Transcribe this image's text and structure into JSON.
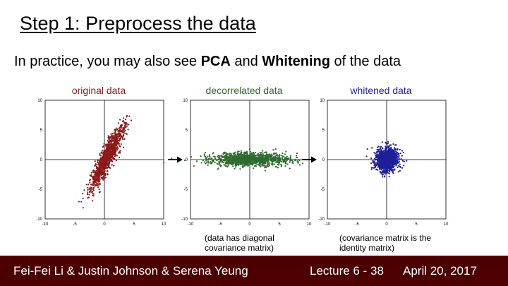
{
  "slide": {
    "title": "Step 1: Preprocess the data",
    "subtitle": {
      "pre": "In practice, you may also see ",
      "pca": "PCA",
      "mid": " and ",
      "whitening": "Whitening",
      "post": " of the data"
    },
    "captions": {
      "decorrelated_line1": "(data has diagonal",
      "decorrelated_line2": "covariance matrix)",
      "whitened_line1": "(covariance matrix is the",
      "whitened_line2": "identity matrix)"
    }
  },
  "footer": {
    "authors": "Fei-Fei Li & Justin Johnson & Serena Yeung",
    "lecture": "Lecture 6 - 38",
    "date": "April 20, 2017",
    "background": "#4d0000"
  },
  "colors": {
    "original": "#8b1a1a",
    "decorrelated": "#2f6b2f",
    "whitened": "#1f1f9a"
  },
  "chart_data": [
    {
      "type": "scatter",
      "title": "original data",
      "xlim": [
        -10,
        10
      ],
      "ylim": [
        -10,
        10
      ],
      "xticks": [
        "-10",
        "-5",
        "0",
        "5",
        "10"
      ],
      "yticks": [
        "10",
        "5",
        "0",
        "-5",
        "-10"
      ],
      "color": "#8b1a1a",
      "distribution": {
        "mean": [
          0.5,
          0.5
        ],
        "principal_axis": [
          0.45,
          0.89
        ],
        "sd_major": 3.0,
        "sd_minor": 0.55,
        "n": 1200
      }
    },
    {
      "type": "scatter",
      "title": "decorrelated data",
      "xlim": [
        -10,
        10
      ],
      "ylim": [
        -10,
        10
      ],
      "xticks": [
        "-10",
        "-5",
        "0",
        "5",
        "10"
      ],
      "yticks": [
        "10",
        "5",
        "0",
        "-5",
        "-10"
      ],
      "color": "#2f6b2f",
      "distribution": {
        "mean": [
          0,
          0
        ],
        "sd_x": 3.3,
        "sd_y": 0.55,
        "n": 1200
      }
    },
    {
      "type": "scatter",
      "title": "whitened data",
      "xlim": [
        -10,
        10
      ],
      "ylim": [
        -10,
        10
      ],
      "xticks": [
        "-10",
        "-5",
        "0",
        "5",
        "10"
      ],
      "yticks": [
        "10",
        "5",
        "0",
        "-5",
        "-10"
      ],
      "color": "#1f1f9a",
      "distribution": {
        "mean": [
          0,
          0
        ],
        "sd_x": 1.0,
        "sd_y": 1.0,
        "n": 1200
      }
    }
  ]
}
